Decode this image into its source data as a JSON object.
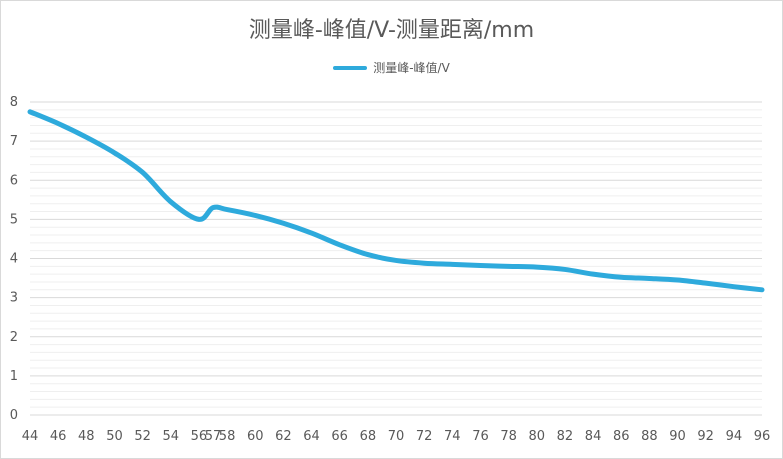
{
  "chart_data": {
    "type": "line",
    "title": "测量峰-峰值/V-测量距离/mm",
    "xlabel": "",
    "ylabel": "",
    "ylim": [
      0,
      8
    ],
    "yticks": [
      0,
      1,
      2,
      3,
      4,
      5,
      6,
      7,
      8
    ],
    "x_categories": [
      44,
      46,
      48,
      50,
      52,
      54,
      56,
      57,
      58,
      60,
      62,
      64,
      66,
      68,
      70,
      72,
      74,
      76,
      78,
      80,
      82,
      84,
      86,
      88,
      90,
      92,
      94,
      96
    ],
    "x_tick_labels": [
      "44",
      "46",
      "48",
      "50",
      "52",
      "54",
      "56",
      "57",
      "58",
      "60",
      "62",
      "64",
      "66",
      "68",
      "70",
      "72",
      "74",
      "76",
      "78",
      "80",
      "82",
      "84",
      "86",
      "88",
      "90",
      "92",
      "94",
      "96"
    ],
    "grid": true,
    "legend_position": "top",
    "series": [
      {
        "name": "测量峰-峰值/V",
        "color": "#2eaadc",
        "x": [
          44,
          46,
          48,
          50,
          52,
          54,
          56,
          57,
          58,
          60,
          62,
          64,
          66,
          68,
          70,
          72,
          74,
          76,
          78,
          80,
          82,
          84,
          86,
          88,
          90,
          92,
          94,
          96
        ],
        "values": [
          7.75,
          7.45,
          7.1,
          6.7,
          6.2,
          5.45,
          5.0,
          5.3,
          5.25,
          5.1,
          4.9,
          4.65,
          4.35,
          4.1,
          3.95,
          3.88,
          3.85,
          3.82,
          3.8,
          3.78,
          3.72,
          3.6,
          3.52,
          3.49,
          3.45,
          3.37,
          3.28,
          3.2
        ]
      }
    ]
  }
}
